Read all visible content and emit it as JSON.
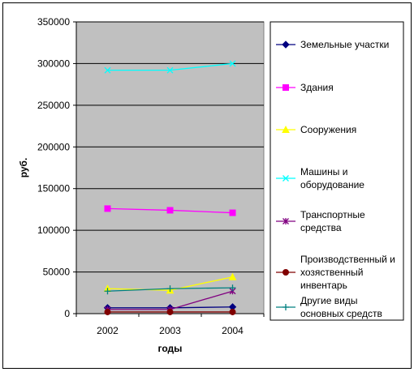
{
  "chart_data": {
    "type": "line",
    "title": "",
    "xlabel": "годы",
    "ylabel": "руб.",
    "categories": [
      "2002",
      "2003",
      "2004"
    ],
    "ylim": [
      0,
      350000
    ],
    "yticks": [
      0,
      50000,
      100000,
      150000,
      200000,
      250000,
      300000,
      350000
    ],
    "ytick_labels": [
      "0",
      "50000",
      "100000",
      "150000",
      "200000",
      "250000",
      "300000",
      "350000"
    ],
    "grid": true,
    "legend_position": "right",
    "plot_background": "#c0c0c0",
    "series": [
      {
        "name": "Земельные участки",
        "values": [
          7000,
          7000,
          8000
        ],
        "color": "#000080",
        "marker": "diamond"
      },
      {
        "name": "Здания",
        "values": [
          126000,
          124000,
          121000
        ],
        "color": "#ff00ff",
        "marker": "square"
      },
      {
        "name": "Сооружения",
        "values": [
          30000,
          28000,
          44000
        ],
        "color": "#ffff00",
        "marker": "triangle"
      },
      {
        "name": "Машины и оборудование",
        "values": [
          292000,
          292000,
          300000
        ],
        "color": "#00ffff",
        "marker": "x"
      },
      {
        "name": "Транспортные средства",
        "values": [
          5000,
          5000,
          27000
        ],
        "color": "#800080",
        "marker": "star"
      },
      {
        "name": "Производственный и хозяственный инвентарь",
        "values": [
          2000,
          2000,
          2000
        ],
        "color": "#800000",
        "marker": "circle"
      },
      {
        "name": "Другие виды основных средств",
        "values": [
          27000,
          30000,
          31000
        ],
        "color": "#008080",
        "marker": "plus"
      }
    ]
  },
  "legend_lines": [
    [
      "Земельные участки"
    ],
    [
      "Здания"
    ],
    [
      "Сооружения"
    ],
    [
      "Машины и",
      "оборудование"
    ],
    [
      "Транспортные",
      "средства"
    ],
    [
      "Производственный и",
      "хозяственный",
      "инвентарь"
    ],
    [
      "Другие виды",
      "основных средств"
    ]
  ]
}
